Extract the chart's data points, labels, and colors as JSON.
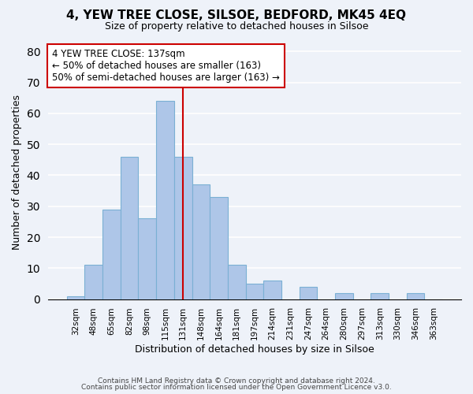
{
  "title": "4, YEW TREE CLOSE, SILSOE, BEDFORD, MK45 4EQ",
  "subtitle": "Size of property relative to detached houses in Silsoe",
  "xlabel": "Distribution of detached houses by size in Silsoe",
  "ylabel": "Number of detached properties",
  "bar_labels": [
    "32sqm",
    "48sqm",
    "65sqm",
    "82sqm",
    "98sqm",
    "115sqm",
    "131sqm",
    "148sqm",
    "164sqm",
    "181sqm",
    "197sqm",
    "214sqm",
    "231sqm",
    "247sqm",
    "264sqm",
    "280sqm",
    "297sqm",
    "313sqm",
    "330sqm",
    "346sqm",
    "363sqm"
  ],
  "bar_values": [
    1,
    11,
    29,
    46,
    26,
    64,
    46,
    37,
    33,
    11,
    5,
    6,
    0,
    4,
    0,
    2,
    0,
    2,
    0,
    2,
    0
  ],
  "bar_color": "#aec6e8",
  "bar_edge_color": "#7ab0d4",
  "vline_x_index": 6,
  "vline_color": "#cc0000",
  "annotation_title": "4 YEW TREE CLOSE: 137sqm",
  "annotation_line1": "← 50% of detached houses are smaller (163)",
  "annotation_line2": "50% of semi-detached houses are larger (163) →",
  "annotation_box_color": "#ffffff",
  "annotation_box_edge": "#cc0000",
  "ylim": [
    0,
    82
  ],
  "yticks": [
    0,
    10,
    20,
    30,
    40,
    50,
    60,
    70,
    80
  ],
  "footer1": "Contains HM Land Registry data © Crown copyright and database right 2024.",
  "footer2": "Contains public sector information licensed under the Open Government Licence v3.0.",
  "background_color": "#eef2f9"
}
